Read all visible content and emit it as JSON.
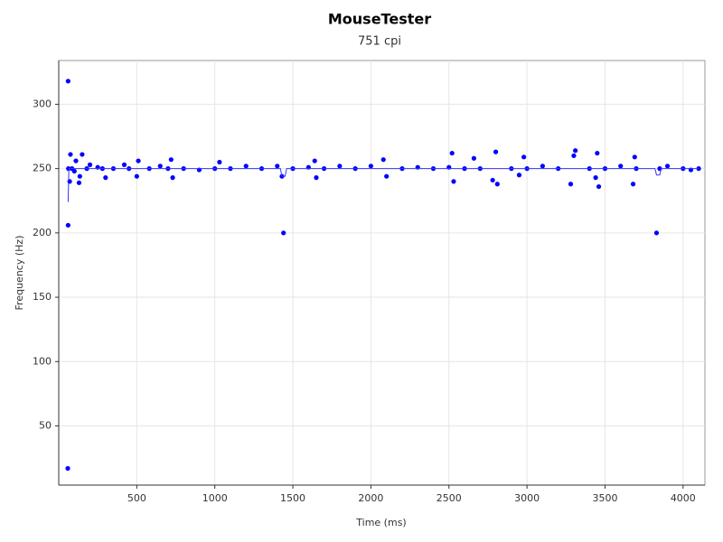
{
  "chart_data": {
    "type": "scatter",
    "title": "MouseTester",
    "subtitle": "751 cpi",
    "x_label": "Time (ms)",
    "y_label": "Frequency (Hz)",
    "xlim": [
      0,
      4140
    ],
    "ylim": [
      4,
      334
    ],
    "xticks": [
      500,
      1000,
      1500,
      2000,
      2500,
      3000,
      3500,
      4000
    ],
    "yticks": [
      50,
      100,
      150,
      200,
      250,
      300
    ],
    "grid": true,
    "series": [
      {
        "mode": "markers",
        "color": "#0000ff",
        "x": [
          60,
          60,
          58,
          62,
          70,
          75,
          85,
          100,
          110,
          130,
          135,
          150,
          180,
          200,
          250,
          280,
          300,
          350,
          420,
          450,
          500,
          510,
          580,
          650,
          700,
          720,
          730,
          800,
          900,
          1000,
          1030,
          1100,
          1200,
          1300,
          1400,
          1430,
          1440,
          1500,
          1600,
          1640,
          1650,
          1700,
          1800,
          1900,
          2000,
          2080,
          2100,
          2200,
          2300,
          2400,
          2500,
          2520,
          2530,
          2600,
          2660,
          2700,
          2780,
          2800,
          2810,
          2900,
          2950,
          2980,
          3000,
          3100,
          3200,
          3280,
          3300,
          3310,
          3400,
          3440,
          3450,
          3460,
          3500,
          3600,
          3680,
          3690,
          3700,
          3830,
          3850,
          3900,
          4000,
          4050,
          4100
        ],
        "values": [
          318,
          206,
          17,
          250,
          240,
          261,
          250,
          248,
          256,
          239,
          244,
          261,
          250,
          253,
          251,
          250,
          243,
          250,
          253,
          250,
          244,
          256,
          250,
          252,
          250,
          257,
          243,
          250,
          249,
          250,
          255,
          250,
          252,
          250,
          252,
          244,
          200,
          250,
          251,
          256,
          243,
          250,
          252,
          250,
          252,
          257,
          244,
          250,
          251,
          250,
          251,
          262,
          240,
          250,
          258,
          250,
          241,
          263,
          238,
          250,
          245,
          259,
          250,
          252,
          250,
          238,
          260,
          264,
          250,
          243,
          262,
          236,
          250,
          252,
          238,
          259,
          250,
          200,
          250,
          252,
          250,
          249,
          250
        ]
      },
      {
        "mode": "line",
        "color": "#3333ff",
        "x": [
          60,
          65,
          1420,
          1430,
          1450,
          1460,
          3820,
          3830,
          3850,
          3860,
          4100
        ],
        "values": [
          224,
          250,
          250,
          244,
          244,
          250,
          250,
          245,
          245,
          250,
          250
        ]
      }
    ]
  }
}
